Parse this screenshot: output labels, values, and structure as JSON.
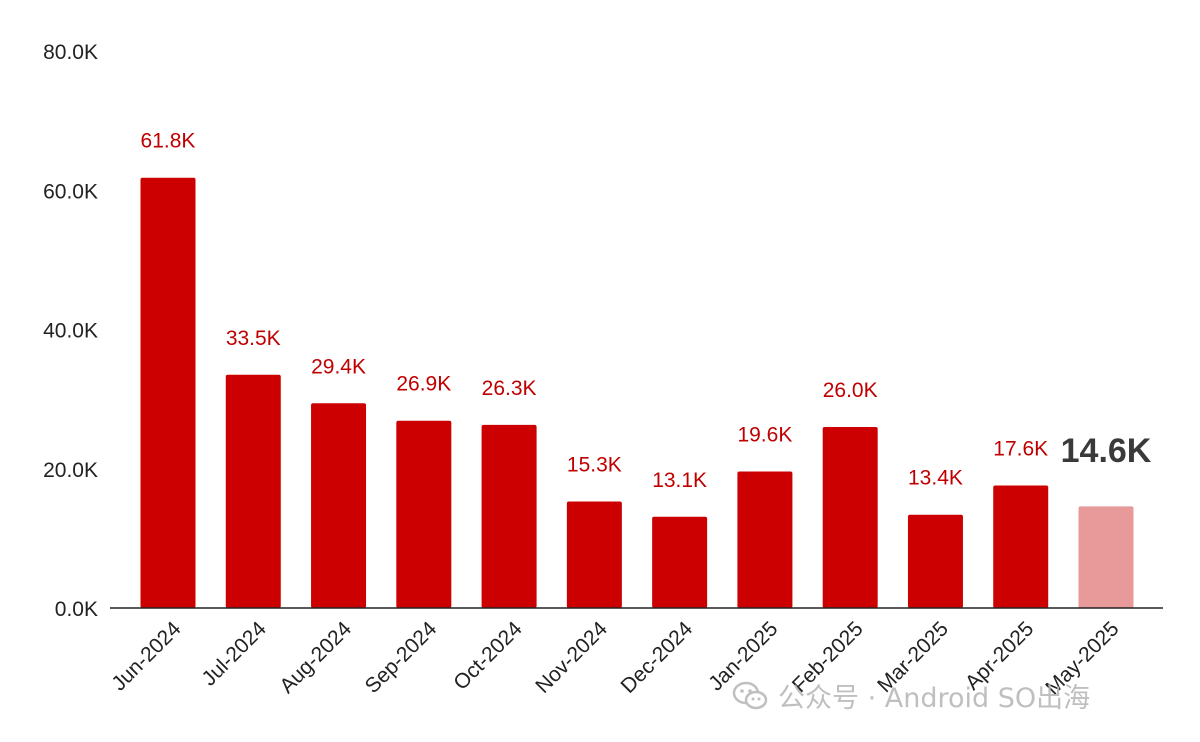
{
  "chart_data": {
    "type": "bar",
    "categories": [
      "Jun-2024",
      "Jul-2024",
      "Aug-2024",
      "Sep-2024",
      "Oct-2024",
      "Nov-2024",
      "Dec-2024",
      "Jan-2025",
      "Feb-2025",
      "Mar-2025",
      "Apr-2025",
      "May-2025"
    ],
    "values": [
      61.8,
      33.5,
      29.4,
      26.9,
      26.3,
      15.3,
      13.1,
      19.6,
      26.0,
      13.4,
      17.6,
      14.6
    ],
    "data_labels": [
      "61.8K",
      "33.5K",
      "29.4K",
      "26.9K",
      "26.3K",
      "15.3K",
      "13.1K",
      "19.6K",
      "26.0K",
      "13.4K",
      "17.6K",
      "14.6K"
    ],
    "highlight_index": 11,
    "ylim": [
      0,
      80
    ],
    "yticks": [
      0,
      20,
      40,
      60,
      80
    ],
    "ytick_labels": [
      "0.0K",
      "20.0K",
      "40.0K",
      "60.0K",
      "80.0K"
    ],
    "colors": {
      "bar": "#cc0000",
      "highlight_bar": "#e89a9a",
      "label": "#c00000",
      "highlight_label": "#3a3a3a",
      "axis": "#222222"
    },
    "grid": false,
    "title": "",
    "xlabel": "",
    "ylabel": ""
  },
  "watermark": {
    "text": "公众号 · Android SO出海",
    "icon": "wechat-icon"
  }
}
